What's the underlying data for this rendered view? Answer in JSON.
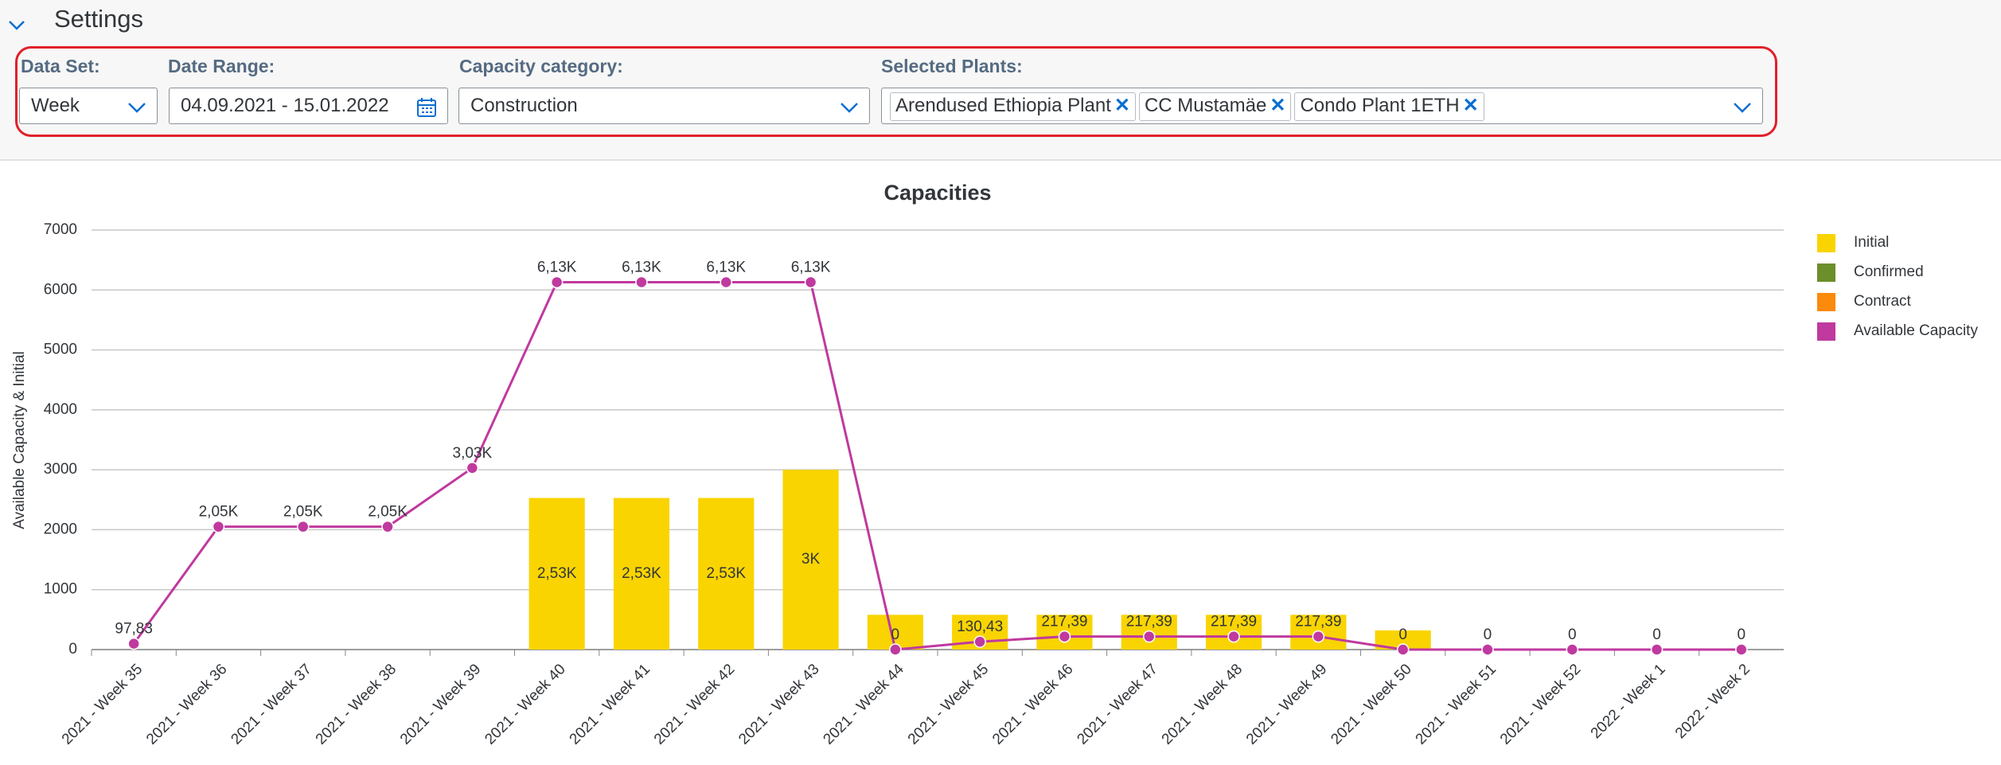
{
  "settings": {
    "title": "Settings",
    "filters": [
      {
        "label": "Data Set:",
        "value": "Week"
      },
      {
        "label": "Date Range:",
        "value": "04.09.2021 - 15.01.2022"
      },
      {
        "label": "Capacity category:",
        "value": "Construction"
      }
    ],
    "plants": {
      "label": "Selected Plants:",
      "tokens": [
        "Arendused Ethiopia Plant",
        "CC Mustamäe",
        "Condo Plant 1ETH"
      ]
    }
  },
  "chart_data": {
    "type": "bar",
    "title": "Capacities",
    "y_label": "Available Capacity & Initial",
    "categories": [
      "2021 - Week 35",
      "2021 - Week 36",
      "2021 - Week 37",
      "2021 - Week 38",
      "2021 - Week 39",
      "2021 - Week 40",
      "2021 - Week 41",
      "2021 - Week 42",
      "2021 - Week 43",
      "2021 - Week 44",
      "2021 - Week 45",
      "2021 - Week 46",
      "2021 - Week 47",
      "2021 - Week 48",
      "2021 - Week 49",
      "2021 - Week 50",
      "2021 - Week 51",
      "2021 - Week 52",
      "2022 - Week 1",
      "2022 - Week 2"
    ],
    "series": [
      {
        "name": "Initial",
        "color": "#f9d400",
        "type": "bar",
        "values": [
          0,
          0,
          0,
          0,
          0,
          2530,
          2530,
          2530,
          3000,
          580,
          580,
          580,
          580,
          580,
          580,
          320,
          0,
          0,
          0,
          0
        ],
        "value_labels": [
          null,
          null,
          null,
          null,
          null,
          "2,53K",
          "2,53K",
          "2,53K",
          "3K",
          null,
          null,
          null,
          null,
          null,
          null,
          null,
          null,
          null,
          null,
          null
        ]
      },
      {
        "name": "Confirmed",
        "color": "#6a8f2b",
        "type": "bar",
        "values": [
          0,
          0,
          0,
          0,
          0,
          0,
          0,
          0,
          0,
          0,
          0,
          0,
          0,
          0,
          0,
          0,
          0,
          0,
          0,
          0
        ]
      },
      {
        "name": "Contract",
        "color": "#fb8a0d",
        "type": "bar",
        "values": [
          0,
          0,
          0,
          0,
          0,
          0,
          0,
          0,
          0,
          0,
          0,
          0,
          0,
          0,
          0,
          0,
          0,
          0,
          0,
          0
        ]
      },
      {
        "name": "Available Capacity",
        "color": "#c0399f",
        "type": "line",
        "values": [
          97.83,
          2050,
          2050,
          2050,
          3030,
          6130,
          6130,
          6130,
          6130,
          0,
          130.43,
          217.39,
          217.39,
          217.39,
          217.39,
          0,
          0,
          0,
          0,
          0
        ],
        "value_labels": [
          "97,83",
          "2,05K",
          "2,05K",
          "2,05K",
          "3,03K",
          "6,13K",
          "6,13K",
          "6,13K",
          "6,13K",
          "0",
          "130,43",
          "217,39",
          "217,39",
          "217,39",
          "217,39",
          "0",
          "0",
          "0",
          "0",
          "0"
        ]
      }
    ],
    "ylim": [
      0,
      7000
    ],
    "yticks": [
      0,
      1000,
      2000,
      3000,
      4000,
      5000,
      6000,
      7000
    ],
    "grid": true,
    "legend": "right"
  }
}
